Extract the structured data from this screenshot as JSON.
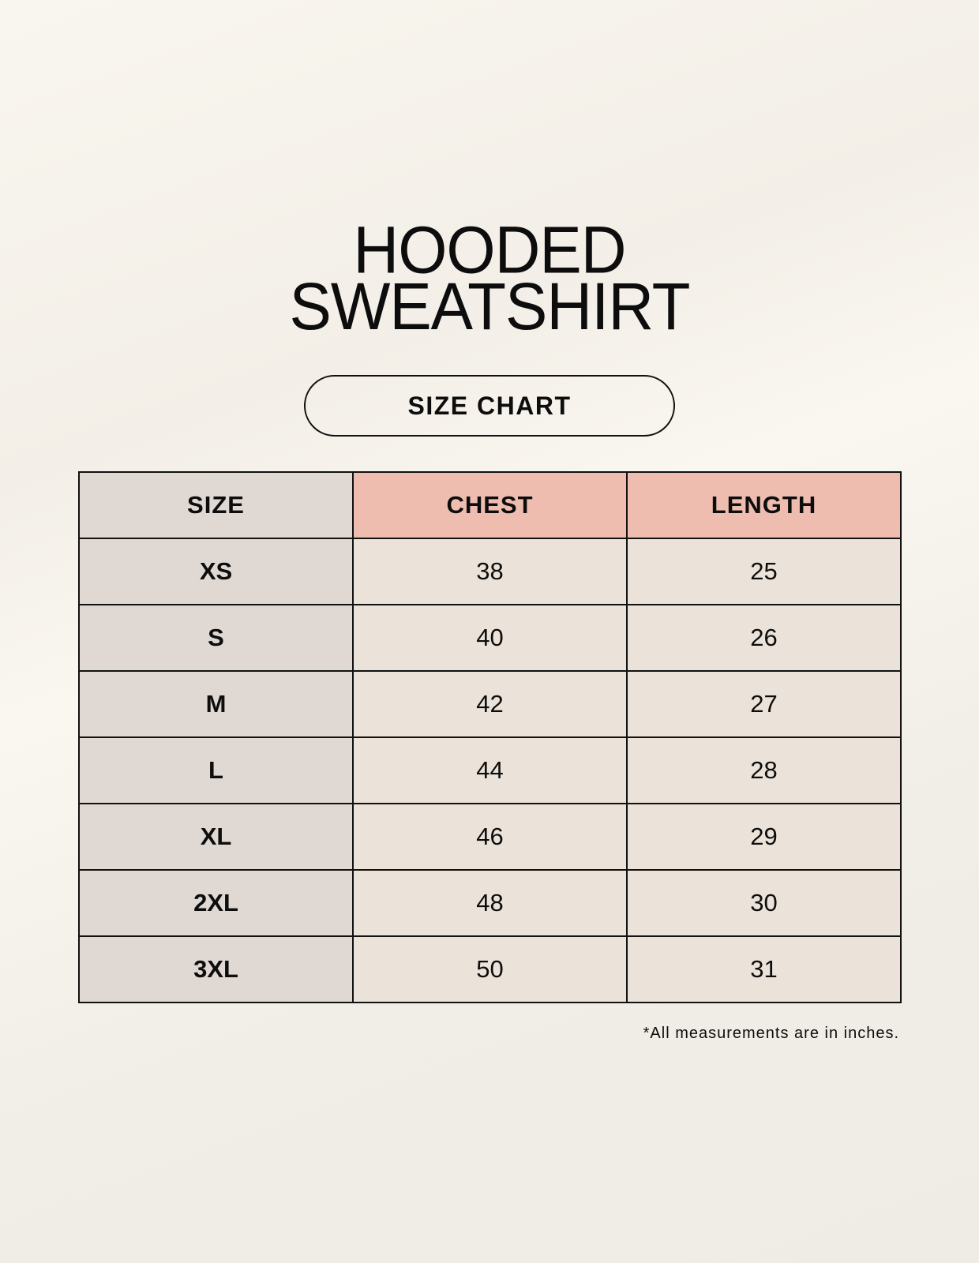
{
  "title": {
    "line1": "HOODED",
    "line2": "SWEATSHIRT"
  },
  "subtitle_pill": "SIZE CHART",
  "table": {
    "headers": [
      "SIZE",
      "CHEST",
      "LENGTH"
    ],
    "rows": [
      [
        "XS",
        "38",
        "25"
      ],
      [
        "S",
        "40",
        "26"
      ],
      [
        "M",
        "42",
        "27"
      ],
      [
        "L",
        "44",
        "28"
      ],
      [
        "XL",
        "46",
        "29"
      ],
      [
        "2XL",
        "48",
        "30"
      ],
      [
        "3XL",
        "50",
        "31"
      ]
    ]
  },
  "footnote": "*All measurements are in inches.",
  "colors": {
    "size_column": "#e0d8d3",
    "header_highlight": "#eebdb0",
    "value_cells": "#ebe3d9"
  }
}
